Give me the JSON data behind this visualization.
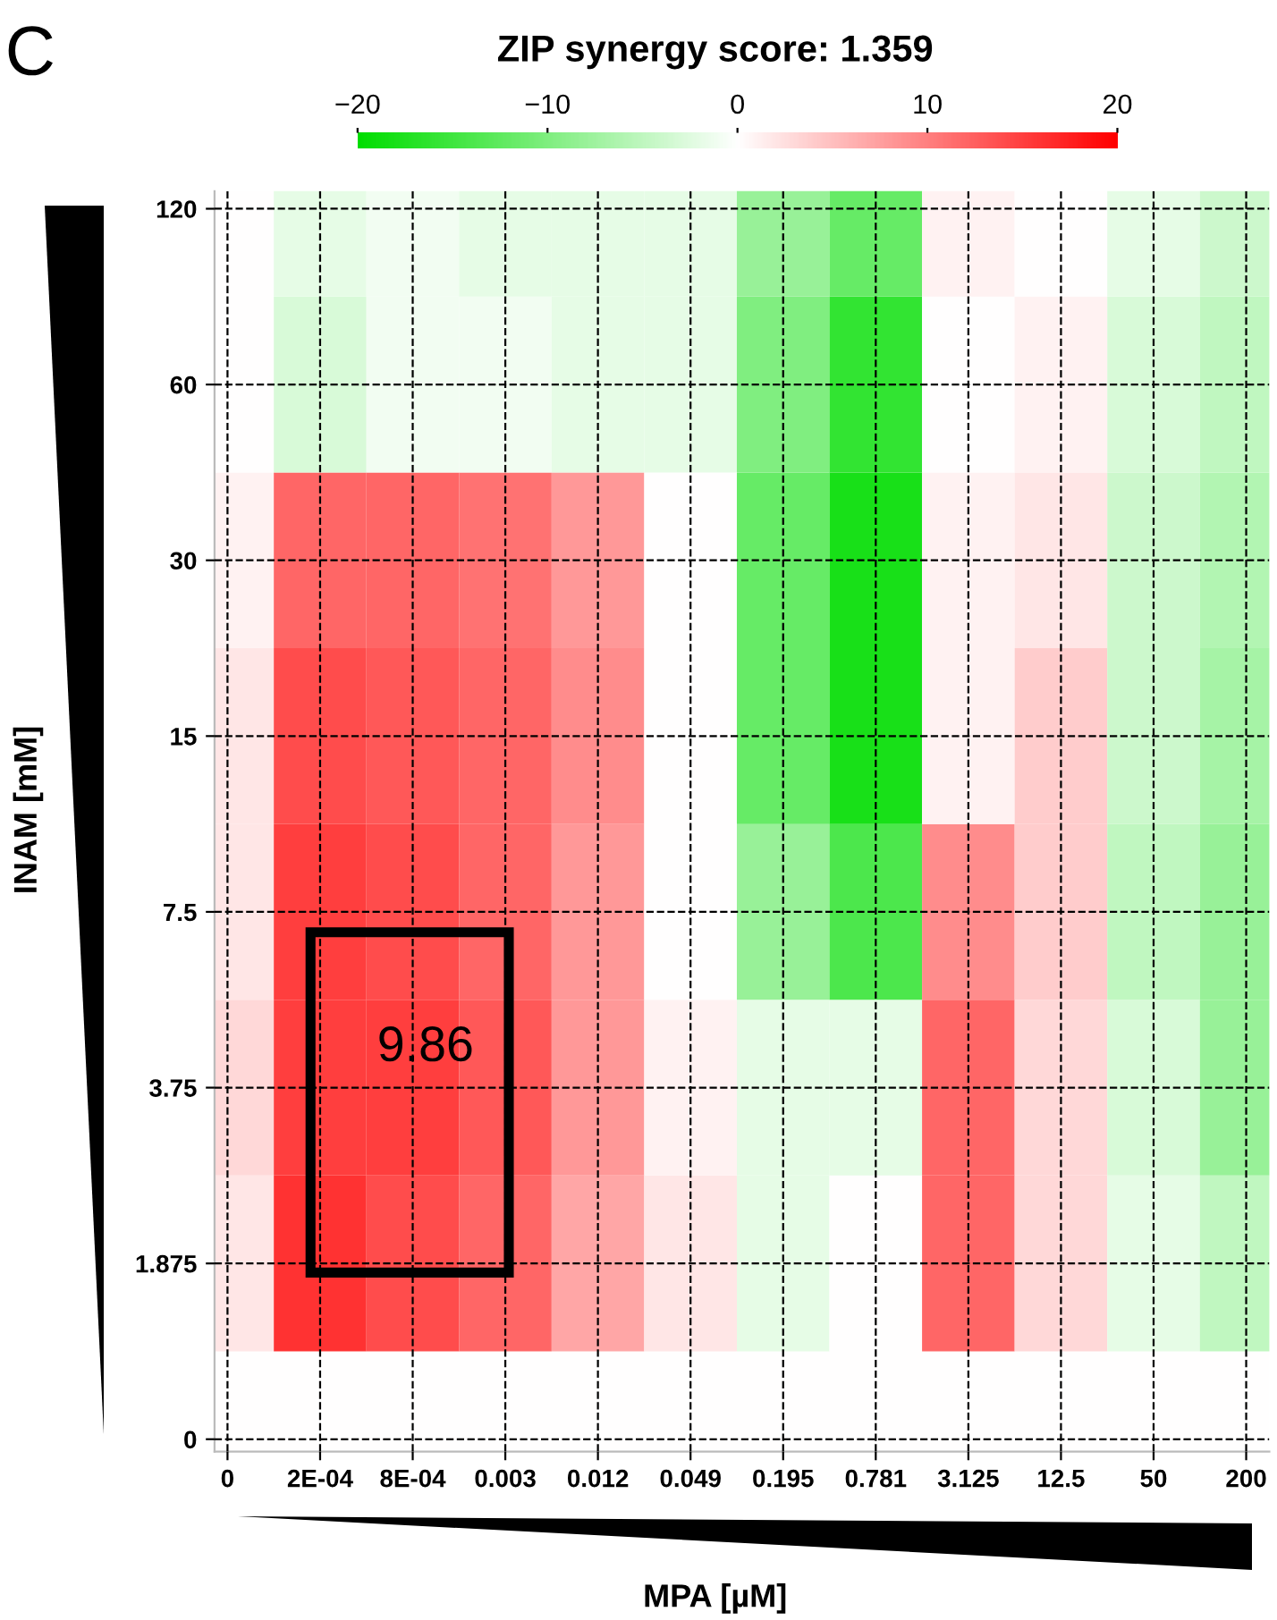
{
  "chart_data": {
    "type": "heatmap",
    "title": "ZIP synergy score: 1.359",
    "xlabel": "MPA [µM]",
    "ylabel": "INAM [mM]",
    "categories": [
      "0",
      "2E-04",
      "8E-04",
      "0.003",
      "0.012",
      "0.049",
      "0.195",
      "0.781",
      "3.125",
      "12.5",
      "50",
      "200"
    ],
    "y_categories": [
      "120",
      "60",
      "30",
      "15",
      "7.5",
      "3.75",
      "1.875",
      "0"
    ],
    "cells": [
      [
        0,
        -2,
        -1,
        -2,
        -2,
        -2,
        -8,
        -12,
        1,
        0,
        -2,
        -4
      ],
      [
        0,
        -3,
        -1,
        -1,
        -2,
        -2,
        -10,
        -16,
        0,
        1,
        -3,
        -5
      ],
      [
        1,
        12,
        12,
        11,
        8,
        0,
        -12,
        -18,
        1,
        2,
        -4,
        -6
      ],
      [
        2,
        14,
        13,
        12,
        9,
        0,
        -12,
        -18,
        1,
        4,
        -4,
        -7
      ],
      [
        2,
        15,
        14,
        12,
        8,
        0,
        -8,
        -14,
        9,
        4,
        -5,
        -8
      ],
      [
        3,
        15,
        15,
        13,
        8,
        1,
        -2,
        -2,
        12,
        3,
        -3,
        -8
      ],
      [
        2,
        16,
        14,
        12,
        7,
        2,
        -2,
        0,
        12,
        3,
        -2,
        -5
      ],
      [
        0,
        0,
        0,
        0,
        0,
        0,
        0,
        0,
        0,
        0,
        0,
        0
      ]
    ],
    "clim": [
      -20,
      20
    ],
    "cticks": [
      {
        "value": -20,
        "label": "−20"
      },
      {
        "value": -10,
        "label": "−10"
      },
      0,
      10,
      20
    ],
    "grid": true,
    "annotations": [
      "C",
      "9.86"
    ]
  }
}
